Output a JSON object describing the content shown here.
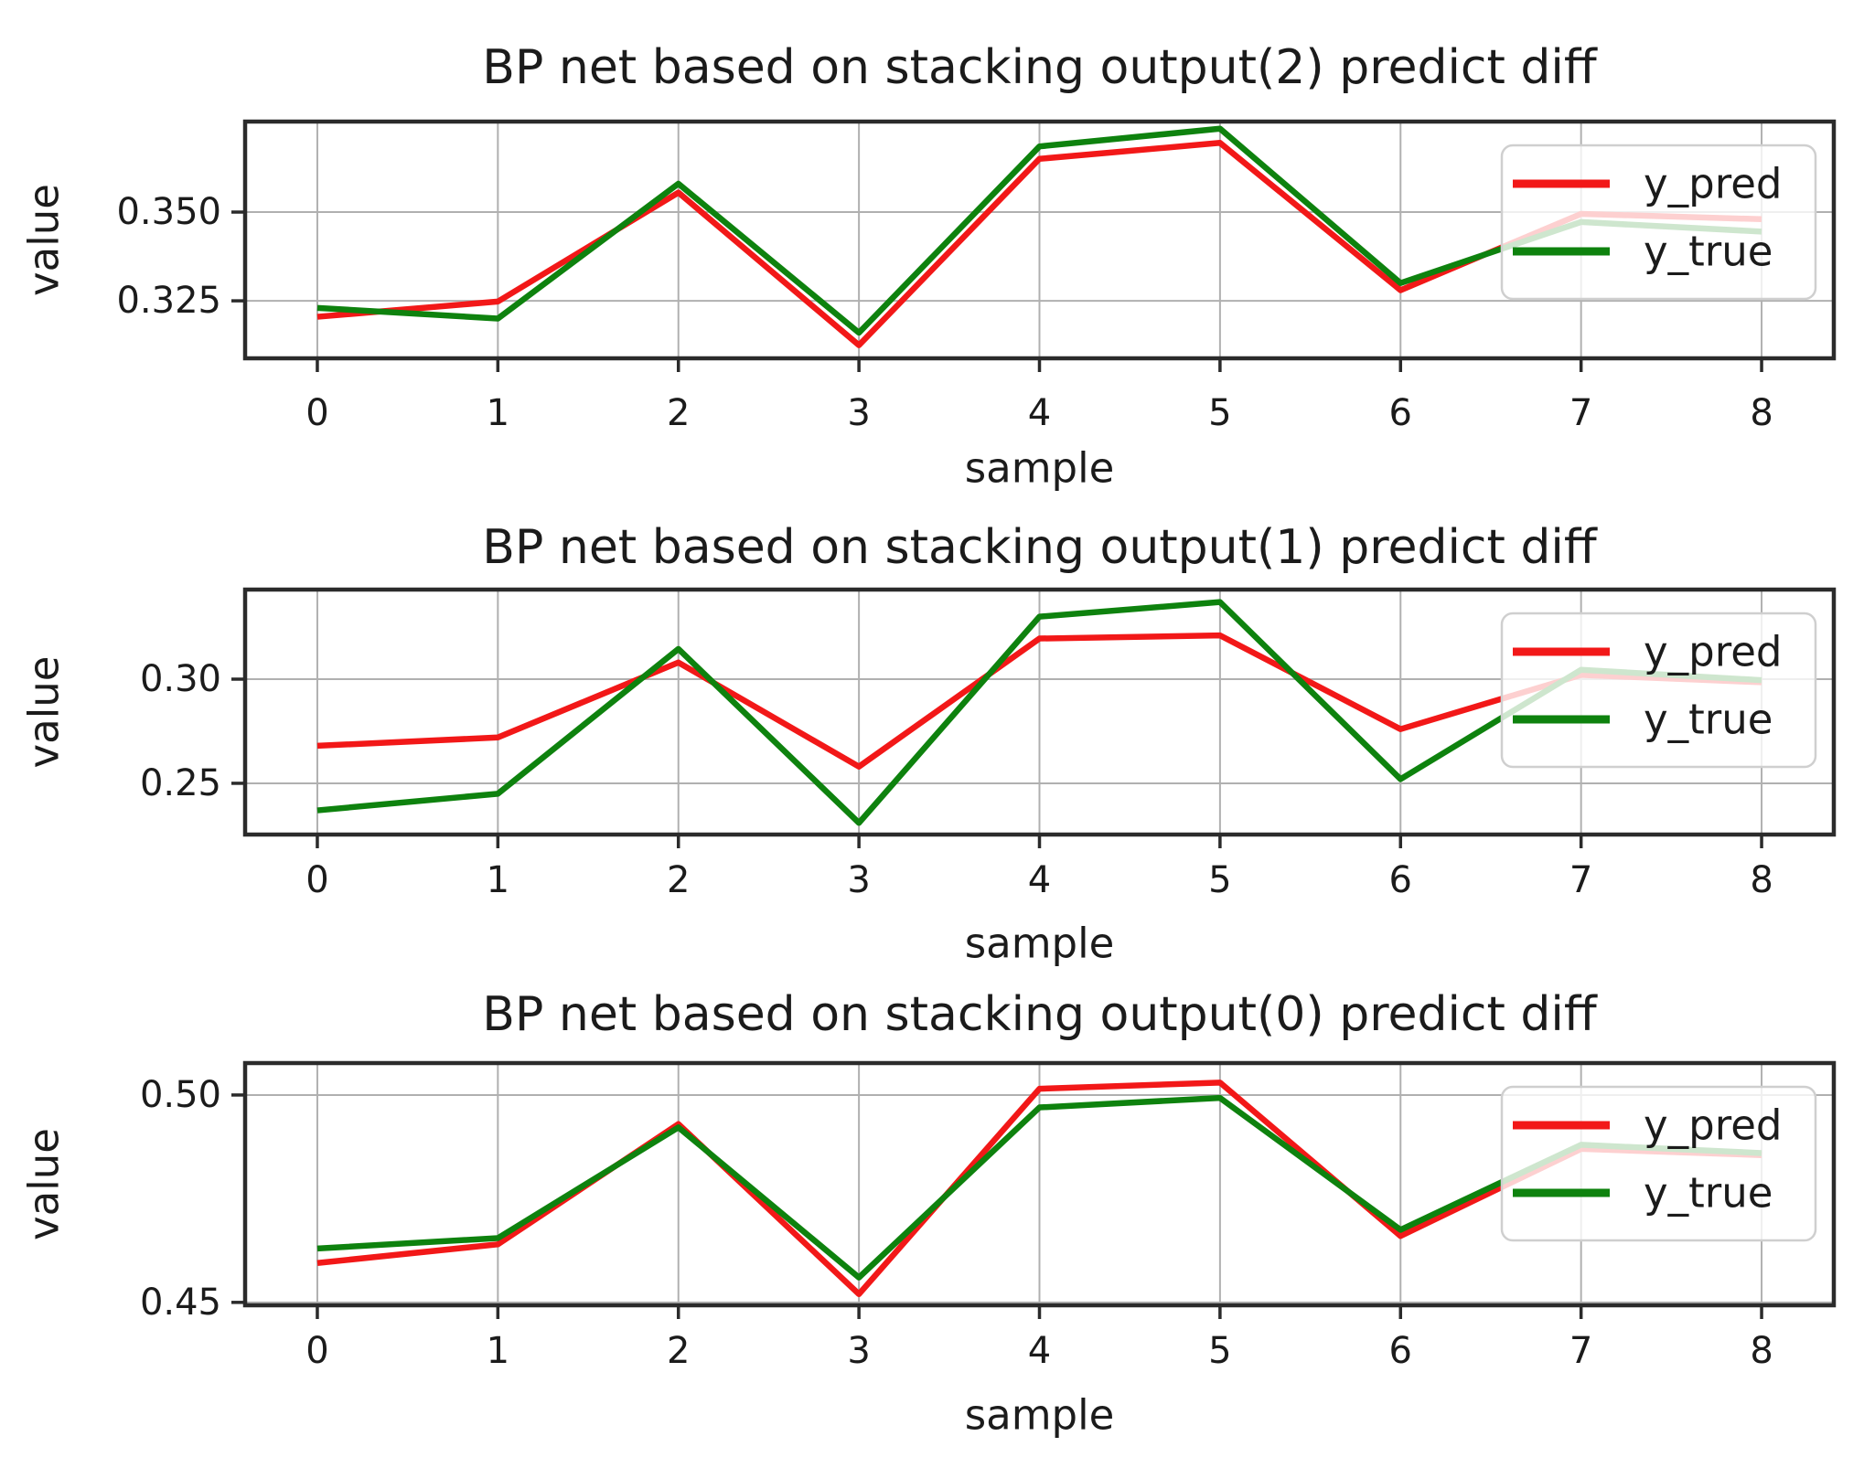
{
  "figure": {
    "background": "#ffffff",
    "text_color": "#1b1b1b",
    "grid_color": "#b0b0b0",
    "spine_color": "#2b2b2b",
    "legend_border_color": "#cfcfcf",
    "legend_fill_opacity": 0.8,
    "series_colors": {
      "y_pred": "#f21818",
      "y_true": "#0e820e"
    }
  },
  "chart_data": [
    {
      "type": "line",
      "title": "BP net based on stacking output(2) predict diff",
      "xlabel": "sample",
      "ylabel": "value",
      "x": [
        0,
        1,
        2,
        3,
        4,
        5,
        6,
        7,
        8
      ],
      "xtick_labels": [
        "0",
        "1",
        "2",
        "3",
        "4",
        "5",
        "6",
        "7",
        "8"
      ],
      "xlim": [
        -0.4,
        8.4
      ],
      "ylim": [
        0.3088,
        0.3755
      ],
      "yticks": [
        {
          "value": 0.35,
          "label": "0.350"
        },
        {
          "value": 0.325,
          "label": "0.325"
        }
      ],
      "grid": true,
      "legend_position": "upper right",
      "series": [
        {
          "name": "y_pred",
          "color": "#f21818",
          "values": [
            0.3205,
            0.3248,
            0.3555,
            0.3125,
            0.365,
            0.3695,
            0.328,
            0.3495,
            0.348
          ]
        },
        {
          "name": "y_true",
          "color": "#0e820e",
          "values": [
            0.323,
            0.32,
            0.358,
            0.316,
            0.3685,
            0.3735,
            0.33,
            0.3472,
            0.3445
          ]
        }
      ]
    },
    {
      "type": "line",
      "title": "BP net based on stacking output(1) predict diff",
      "xlabel": "sample",
      "ylabel": "value",
      "x": [
        0,
        1,
        2,
        3,
        4,
        5,
        6,
        7,
        8
      ],
      "xtick_labels": [
        "0",
        "1",
        "2",
        "3",
        "4",
        "5",
        "6",
        "7",
        "8"
      ],
      "xlim": [
        -0.4,
        8.4
      ],
      "ylim": [
        0.2254,
        0.343
      ],
      "yticks": [
        {
          "value": 0.3,
          "label": "0.30"
        },
        {
          "value": 0.25,
          "label": "0.25"
        }
      ],
      "grid": true,
      "legend_position": "upper right",
      "series": [
        {
          "name": "y_pred",
          "color": "#f21818",
          "values": [
            0.268,
            0.272,
            0.308,
            0.258,
            0.3195,
            0.321,
            0.276,
            0.302,
            0.2985
          ]
        },
        {
          "name": "y_true",
          "color": "#0e820e",
          "values": [
            0.237,
            0.245,
            0.3145,
            0.231,
            0.33,
            0.337,
            0.252,
            0.3045,
            0.2995
          ]
        }
      ]
    },
    {
      "type": "line",
      "title": "BP net based on stacking output(0) predict diff",
      "xlabel": "sample",
      "ylabel": "value",
      "x": [
        0,
        1,
        2,
        3,
        4,
        5,
        6,
        7,
        8
      ],
      "xtick_labels": [
        "0",
        "1",
        "2",
        "3",
        "4",
        "5",
        "6",
        "7",
        "8"
      ],
      "xlim": [
        -0.4,
        8.4
      ],
      "ylim": [
        0.4493,
        0.5077
      ],
      "yticks": [
        {
          "value": 0.5,
          "label": "0.50"
        },
        {
          "value": 0.45,
          "label": "0.45"
        }
      ],
      "grid": true,
      "legend_position": "upper right",
      "series": [
        {
          "name": "y_pred",
          "color": "#f21818",
          "values": [
            0.4595,
            0.464,
            0.493,
            0.452,
            0.5015,
            0.503,
            0.466,
            0.487,
            0.4855
          ]
        },
        {
          "name": "y_true",
          "color": "#0e820e",
          "values": [
            0.463,
            0.4655,
            0.4922,
            0.456,
            0.497,
            0.4993,
            0.4675,
            0.488,
            0.486
          ]
        }
      ]
    }
  ]
}
